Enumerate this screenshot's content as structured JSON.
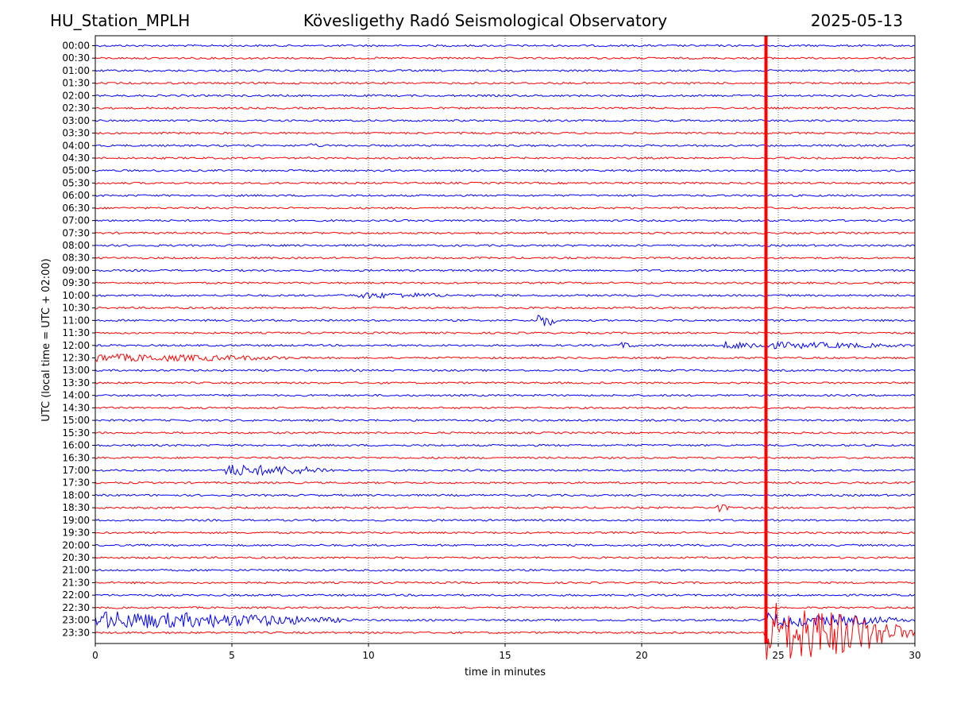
{
  "header": {
    "left": "HU_Station_MPLH",
    "center": "Kövesligethy Radó Seismological Observatory",
    "right": "2025-05-13"
  },
  "chart_data": {
    "type": "line",
    "title": "Kövesligethy Radó Seismological Observatory",
    "xlabel": "time in minutes",
    "ylabel": "UTC (local time = UTC + 02:00)",
    "xlim": [
      0,
      30
    ],
    "xticks": [
      "0",
      "5",
      "10",
      "15",
      "20",
      "25",
      "30"
    ],
    "grid": "vertical dotted at each 5 minutes",
    "colors": {
      "even_rows": "#0000ff",
      "odd_rows": "#ff0000"
    },
    "rows": [
      "00:00",
      "00:30",
      "01:00",
      "01:30",
      "02:00",
      "02:30",
      "03:00",
      "03:30",
      "04:00",
      "04:30",
      "05:00",
      "05:30",
      "06:00",
      "06:30",
      "07:00",
      "07:30",
      "08:00",
      "08:30",
      "09:00",
      "09:30",
      "10:00",
      "10:30",
      "11:00",
      "11:30",
      "12:00",
      "12:30",
      "13:00",
      "13:30",
      "14:00",
      "14:30",
      "15:00",
      "15:30",
      "16:00",
      "16:30",
      "17:00",
      "17:30",
      "18:00",
      "18:30",
      "19:00",
      "19:30",
      "20:00",
      "20:30",
      "21:00",
      "21:30",
      "22:00",
      "22:30",
      "23:00",
      "23:30"
    ],
    "events": [
      {
        "row": "04:00",
        "start": 7.7,
        "end": 8.4,
        "amp": 0.25
      },
      {
        "row": "10:00",
        "start": 9.6,
        "end": 13.2,
        "amp": 0.45
      },
      {
        "row": "11:00",
        "start": 16.2,
        "end": 16.9,
        "amp": 1.4
      },
      {
        "row": "12:00",
        "start": 19.1,
        "end": 19.9,
        "amp": 0.5
      },
      {
        "row": "12:00",
        "start": 23.0,
        "end": 30.0,
        "amp": 0.55
      },
      {
        "row": "12:30",
        "start": 0.0,
        "end": 7.6,
        "amp": 0.6
      },
      {
        "row": "17:00",
        "start": 4.7,
        "end": 9.0,
        "amp": 1.0
      },
      {
        "row": "18:30",
        "start": 22.7,
        "end": 23.3,
        "amp": 0.7
      },
      {
        "row": "23:00",
        "start": 0.0,
        "end": 9.5,
        "amp": 1.6
      },
      {
        "row": "23:00",
        "start": 24.5,
        "end": 30.0,
        "amp": 1.2
      },
      {
        "row": "23:30",
        "start": 24.5,
        "end": 30.0,
        "amp": 6.0
      }
    ],
    "spike": {
      "row": "23:30",
      "x": 24.55,
      "color": "#ff0000"
    }
  }
}
